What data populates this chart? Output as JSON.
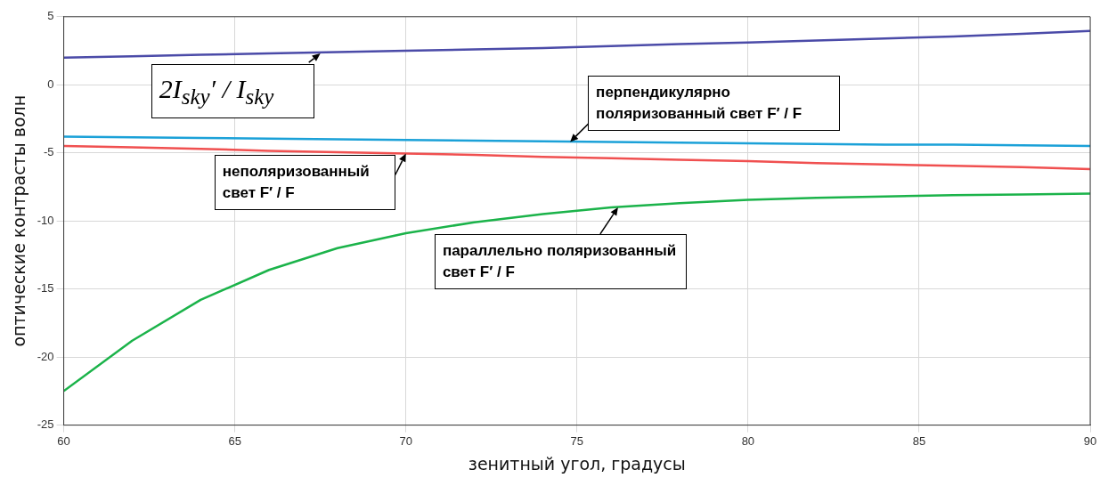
{
  "chart_data": {
    "type": "line",
    "xlabel": "зенитный угол, градусы",
    "ylabel": "оптические контрасты волн",
    "x": [
      60,
      62,
      64,
      66,
      68,
      70,
      72,
      74,
      76,
      78,
      80,
      82,
      84,
      86,
      88,
      90
    ],
    "series": [
      {
        "color": "#4b4ba8",
        "values": [
          2.0,
          2.1,
          2.2,
          2.3,
          2.4,
          2.5,
          2.6,
          2.7,
          2.85,
          3.0,
          3.1,
          3.25,
          3.4,
          3.55,
          3.75,
          3.95
        ]
      },
      {
        "color": "#1ba1d8",
        "values": [
          -3.8,
          -3.85,
          -3.9,
          -3.95,
          -4.0,
          -4.05,
          -4.1,
          -4.15,
          -4.2,
          -4.25,
          -4.3,
          -4.35,
          -4.4,
          -4.4,
          -4.45,
          -4.5
        ]
      },
      {
        "color": "#f05050",
        "values": [
          -4.5,
          -4.6,
          -4.7,
          -4.85,
          -4.95,
          -5.05,
          -5.15,
          -5.3,
          -5.4,
          -5.5,
          -5.6,
          -5.75,
          -5.85,
          -5.95,
          -6.05,
          -6.2
        ]
      },
      {
        "color": "#1bb34a",
        "values": [
          -22.5,
          -18.8,
          -15.8,
          -13.6,
          -12.0,
          -10.9,
          -10.1,
          -9.5,
          -9.0,
          -8.7,
          -8.45,
          -8.3,
          -8.2,
          -8.1,
          -8.05,
          -8.0
        ]
      }
    ],
    "xlim": [
      60,
      90
    ],
    "xticks": [
      60,
      65,
      70,
      75,
      80,
      85,
      90
    ],
    "ylim": [
      -25,
      5
    ],
    "yticks": [
      -25,
      -20,
      -15,
      -10,
      -5,
      0,
      5
    ],
    "grid": true,
    "legend": false,
    "marker": "none",
    "line_style": "solid",
    "annotations": [
      {
        "text": "2I$_{sky}$′ / I$_{sky}$",
        "x": 67.5,
        "y": 2.3
      },
      {
        "text": "перпендикулярно поляризованный свет F′ / F",
        "x": 74.8,
        "y": -4.2
      },
      {
        "text": "неполяризованный свет F′ / F",
        "x": 70,
        "y": -5.05
      },
      {
        "text": "параллельно поляризованный свет F′ / F",
        "x": 76.2,
        "y": -9.0
      }
    ]
  }
}
